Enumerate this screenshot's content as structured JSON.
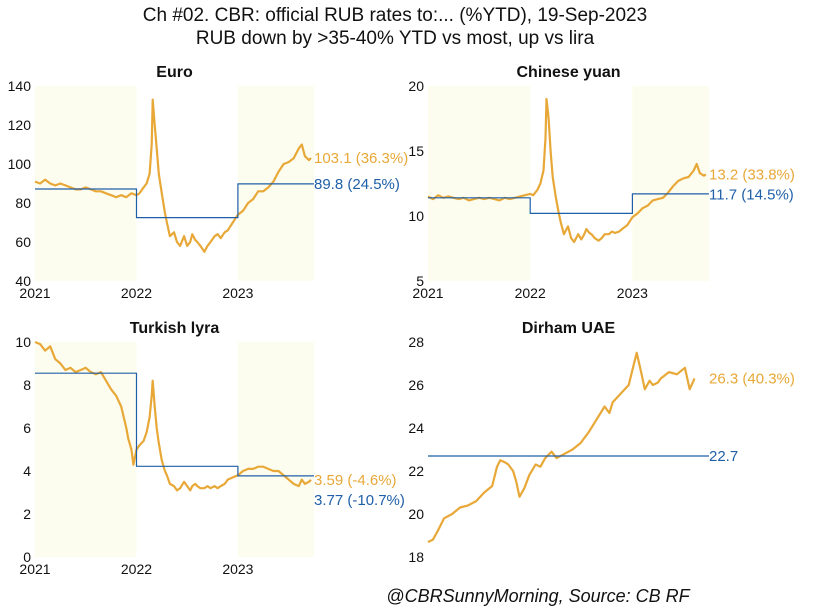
{
  "title": "Ch #02. CBR: official RUB rates to:... (%YTD), 19-Sep-2023",
  "subtitle": "RUB down by >35-40% YTD vs most, up vs lira",
  "source": "@CBRSunnyMorning, Source: CB RF",
  "colors": {
    "market": "#E8A838",
    "annual_avg": "#1F5FA8",
    "shade": "#FDFDEF",
    "text": "#111111"
  },
  "chart_data": [
    {
      "type": "line",
      "title": "Euro",
      "ylim": [
        40,
        140
      ],
      "yticks": [
        40,
        60,
        80,
        100,
        120,
        140
      ],
      "xlim": [
        2021.0,
        2023.75
      ],
      "xticks": [
        {
          "v": 2021,
          "label": "2021"
        },
        {
          "v": 2022,
          "label": "2022"
        },
        {
          "v": 2023,
          "label": "2023"
        }
      ],
      "shaded_periods": [
        [
          2021.0,
          2022.0
        ],
        [
          2023.0,
          2023.75
        ]
      ],
      "series": [
        {
          "role": "market",
          "x": [
            2021.0,
            2021.05,
            2021.1,
            2021.15,
            2021.2,
            2021.25,
            2021.3,
            2021.35,
            2021.4,
            2021.45,
            2021.5,
            2021.55,
            2021.6,
            2021.65,
            2021.7,
            2021.75,
            2021.8,
            2021.85,
            2021.9,
            2021.95,
            2022.0,
            2022.03,
            2022.07,
            2022.1,
            2022.13,
            2022.15,
            2022.16,
            2022.18,
            2022.2,
            2022.22,
            2022.25,
            2022.28,
            2022.3,
            2022.33,
            2022.37,
            2022.4,
            2022.43,
            2022.47,
            2022.5,
            2022.53,
            2022.55,
            2022.58,
            2022.6,
            2022.63,
            2022.67,
            2022.7,
            2022.73,
            2022.77,
            2022.8,
            2022.83,
            2022.87,
            2022.9,
            2022.95,
            2023.0,
            2023.05,
            2023.1,
            2023.15,
            2023.2,
            2023.25,
            2023.3,
            2023.35,
            2023.4,
            2023.45,
            2023.5,
            2023.55,
            2023.6,
            2023.63,
            2023.66,
            2023.7,
            2023.72
          ],
          "y": [
            91,
            90,
            92,
            90,
            89,
            90,
            89,
            88,
            87,
            87,
            88,
            87,
            86,
            86,
            85,
            84,
            83,
            84,
            83,
            85,
            84,
            85,
            88,
            90,
            95,
            110,
            133,
            120,
            108,
            95,
            85,
            75,
            70,
            63,
            65,
            60,
            58,
            63,
            58,
            60,
            64,
            61,
            60,
            58,
            55,
            58,
            60,
            63,
            64,
            62,
            65,
            66,
            70,
            74,
            76,
            80,
            82,
            86,
            86,
            88,
            91,
            96,
            100,
            101,
            103,
            108,
            110,
            104,
            102,
            103.1
          ]
        },
        {
          "role": "annual_avg",
          "x": [
            2021.0,
            2022.0,
            2022.0,
            2023.0,
            2023.0,
            2023.75
          ],
          "y": [
            87.2,
            87.2,
            72.5,
            72.5,
            89.8,
            89.8
          ]
        }
      ],
      "labels": [
        {
          "role": "market",
          "text": "103.1 (36.3%)",
          "y": 103.1
        },
        {
          "role": "annual_avg",
          "text": "89.8 (24.5%)",
          "y": 89.8
        }
      ]
    },
    {
      "type": "line",
      "title": "Chinese yuan",
      "ylim": [
        5,
        20
      ],
      "yticks": [
        5,
        10,
        15,
        20
      ],
      "xlim": [
        2021.0,
        2023.75
      ],
      "xticks": [
        {
          "v": 2021,
          "label": "2021"
        },
        {
          "v": 2022,
          "label": "2022"
        },
        {
          "v": 2023,
          "label": "2023"
        }
      ],
      "shaded_periods": [
        [
          2021.0,
          2022.0
        ],
        [
          2023.0,
          2023.75
        ]
      ],
      "series": [
        {
          "role": "market",
          "x": [
            2021.0,
            2021.05,
            2021.1,
            2021.15,
            2021.2,
            2021.25,
            2021.3,
            2021.35,
            2021.4,
            2021.45,
            2021.5,
            2021.55,
            2021.6,
            2021.65,
            2021.7,
            2021.75,
            2021.8,
            2021.85,
            2021.9,
            2021.95,
            2022.0,
            2022.03,
            2022.07,
            2022.1,
            2022.13,
            2022.15,
            2022.16,
            2022.18,
            2022.2,
            2022.22,
            2022.25,
            2022.28,
            2022.3,
            2022.33,
            2022.37,
            2022.4,
            2022.43,
            2022.47,
            2022.5,
            2022.53,
            2022.55,
            2022.58,
            2022.6,
            2022.63,
            2022.67,
            2022.7,
            2022.73,
            2022.77,
            2022.8,
            2022.83,
            2022.87,
            2022.9,
            2022.95,
            2023.0,
            2023.05,
            2023.1,
            2023.15,
            2023.2,
            2023.25,
            2023.3,
            2023.35,
            2023.4,
            2023.45,
            2023.5,
            2023.55,
            2023.6,
            2023.63,
            2023.66,
            2023.7,
            2023.72
          ],
          "y": [
            11.5,
            11.3,
            11.6,
            11.4,
            11.5,
            11.4,
            11.3,
            11.4,
            11.2,
            11.3,
            11.4,
            11.3,
            11.4,
            11.3,
            11.2,
            11.4,
            11.3,
            11.4,
            11.5,
            11.6,
            11.7,
            11.6,
            12.0,
            12.5,
            13.5,
            16.0,
            19.0,
            17.5,
            15.0,
            13.0,
            11.5,
            10.2,
            9.5,
            8.6,
            9.2,
            8.3,
            8.0,
            8.6,
            8.2,
            8.6,
            9.0,
            8.7,
            8.6,
            8.3,
            8.1,
            8.3,
            8.6,
            8.6,
            8.8,
            8.7,
            8.8,
            9.0,
            9.3,
            9.9,
            10.2,
            10.6,
            10.8,
            11.2,
            11.3,
            11.4,
            11.8,
            12.3,
            12.7,
            12.9,
            13.0,
            13.5,
            14.0,
            13.3,
            13.1,
            13.2
          ]
        },
        {
          "role": "annual_avg",
          "x": [
            2021.0,
            2022.0,
            2022.0,
            2023.0,
            2023.0,
            2023.75
          ],
          "y": [
            11.4,
            11.4,
            10.2,
            10.2,
            11.7,
            11.7
          ]
        }
      ],
      "labels": [
        {
          "role": "market",
          "text": "13.2 (33.8%)",
          "y": 13.2
        },
        {
          "role": "annual_avg",
          "text": "11.7 (14.5%)",
          "y": 11.7
        }
      ]
    },
    {
      "type": "line",
      "title": "Turkish lyra",
      "ylim": [
        0,
        10
      ],
      "yticks": [
        0,
        2,
        4,
        6,
        8,
        10
      ],
      "xlim": [
        2021.0,
        2023.75
      ],
      "xticks": [
        {
          "v": 2021,
          "label": "2021"
        },
        {
          "v": 2022,
          "label": "2022"
        },
        {
          "v": 2023,
          "label": "2023"
        }
      ],
      "shaded_periods": [
        [
          2021.0,
          2022.0
        ],
        [
          2023.0,
          2023.75
        ]
      ],
      "series": [
        {
          "role": "market",
          "x": [
            2021.0,
            2021.05,
            2021.1,
            2021.15,
            2021.2,
            2021.25,
            2021.3,
            2021.35,
            2021.4,
            2021.45,
            2021.5,
            2021.55,
            2021.6,
            2021.65,
            2021.7,
            2021.75,
            2021.8,
            2021.85,
            2021.9,
            2021.92,
            2021.95,
            2021.97,
            2022.0,
            2022.03,
            2022.07,
            2022.1,
            2022.13,
            2022.15,
            2022.16,
            2022.18,
            2022.2,
            2022.22,
            2022.25,
            2022.28,
            2022.3,
            2022.33,
            2022.37,
            2022.4,
            2022.43,
            2022.47,
            2022.5,
            2022.53,
            2022.55,
            2022.58,
            2022.6,
            2022.63,
            2022.67,
            2022.7,
            2022.73,
            2022.77,
            2022.8,
            2022.83,
            2022.87,
            2022.9,
            2022.95,
            2023.0,
            2023.05,
            2023.1,
            2023.15,
            2023.2,
            2023.25,
            2023.3,
            2023.35,
            2023.4,
            2023.45,
            2023.5,
            2023.55,
            2023.6,
            2023.63,
            2023.66,
            2023.7,
            2023.72
          ],
          "y": [
            10.0,
            9.9,
            9.6,
            9.8,
            9.2,
            9.0,
            8.7,
            8.8,
            8.6,
            8.7,
            8.8,
            8.6,
            8.5,
            8.6,
            8.2,
            7.8,
            7.5,
            7.0,
            6.0,
            5.5,
            5.0,
            4.3,
            5.0,
            5.2,
            5.4,
            5.8,
            6.5,
            7.5,
            8.2,
            7.0,
            6.0,
            5.3,
            4.5,
            4.0,
            3.8,
            3.4,
            3.3,
            3.1,
            3.2,
            3.5,
            3.3,
            3.1,
            3.3,
            3.4,
            3.3,
            3.2,
            3.2,
            3.3,
            3.2,
            3.3,
            3.2,
            3.3,
            3.4,
            3.6,
            3.7,
            3.8,
            4.0,
            4.1,
            4.1,
            4.2,
            4.2,
            4.1,
            4.0,
            4.0,
            3.8,
            3.6,
            3.4,
            3.3,
            3.6,
            3.4,
            3.5,
            3.59
          ]
        },
        {
          "role": "annual_avg",
          "x": [
            2021.0,
            2022.0,
            2022.0,
            2023.0,
            2023.0,
            2023.75
          ],
          "y": [
            8.55,
            8.55,
            4.22,
            4.22,
            3.77,
            3.77
          ]
        }
      ],
      "labels": [
        {
          "role": "market",
          "text": "3.59 (-4.6%)",
          "y": 3.59
        },
        {
          "role": "annual_avg",
          "text": "3.77 (-10.7%)",
          "y": 3.77
        }
      ]
    },
    {
      "type": "line",
      "title": "Dirham UAE",
      "ylim": [
        18,
        28
      ],
      "yticks": [
        18,
        20,
        22,
        24,
        26,
        28
      ],
      "xlim": [
        2022.0,
        2023.75
      ],
      "xticks": [],
      "shaded_periods": [],
      "series": [
        {
          "role": "market",
          "x": [
            2022.0,
            2022.03,
            2022.06,
            2022.1,
            2022.15,
            2022.2,
            2022.25,
            2022.3,
            2022.35,
            2022.4,
            2022.43,
            2022.45,
            2022.48,
            2022.5,
            2022.53,
            2022.55,
            2022.57,
            2022.6,
            2022.63,
            2022.67,
            2022.7,
            2022.73,
            2022.77,
            2022.8,
            2022.85,
            2022.9,
            2022.95,
            2023.0,
            2023.05,
            2023.1,
            2023.13,
            2023.15,
            2023.2,
            2023.25,
            2023.3,
            2023.33,
            2023.35,
            2023.38,
            2023.4,
            2023.43,
            2023.45,
            2023.5,
            2023.55,
            2023.6,
            2023.63,
            2023.66
          ],
          "y": [
            18.7,
            18.8,
            19.2,
            19.8,
            20.0,
            20.3,
            20.4,
            20.6,
            21.0,
            21.3,
            22.2,
            22.5,
            22.4,
            22.3,
            22.0,
            21.5,
            20.8,
            21.2,
            21.8,
            22.3,
            22.2,
            22.6,
            22.9,
            22.6,
            22.8,
            23.0,
            23.3,
            23.8,
            24.4,
            25.0,
            24.7,
            25.2,
            25.6,
            26.0,
            27.5,
            26.5,
            25.8,
            26.2,
            26.0,
            26.1,
            26.3,
            26.6,
            26.5,
            26.8,
            25.8,
            26.3
          ]
        },
        {
          "role": "annual_avg",
          "x": [
            2022.0,
            2023.75
          ],
          "y": [
            22.7,
            22.7
          ]
        }
      ],
      "labels": [
        {
          "role": "market",
          "text": "26.3 (40.3%)",
          "y": 26.3
        },
        {
          "role": "annual_avg",
          "text": "22.7",
          "y": 22.7
        }
      ]
    }
  ]
}
